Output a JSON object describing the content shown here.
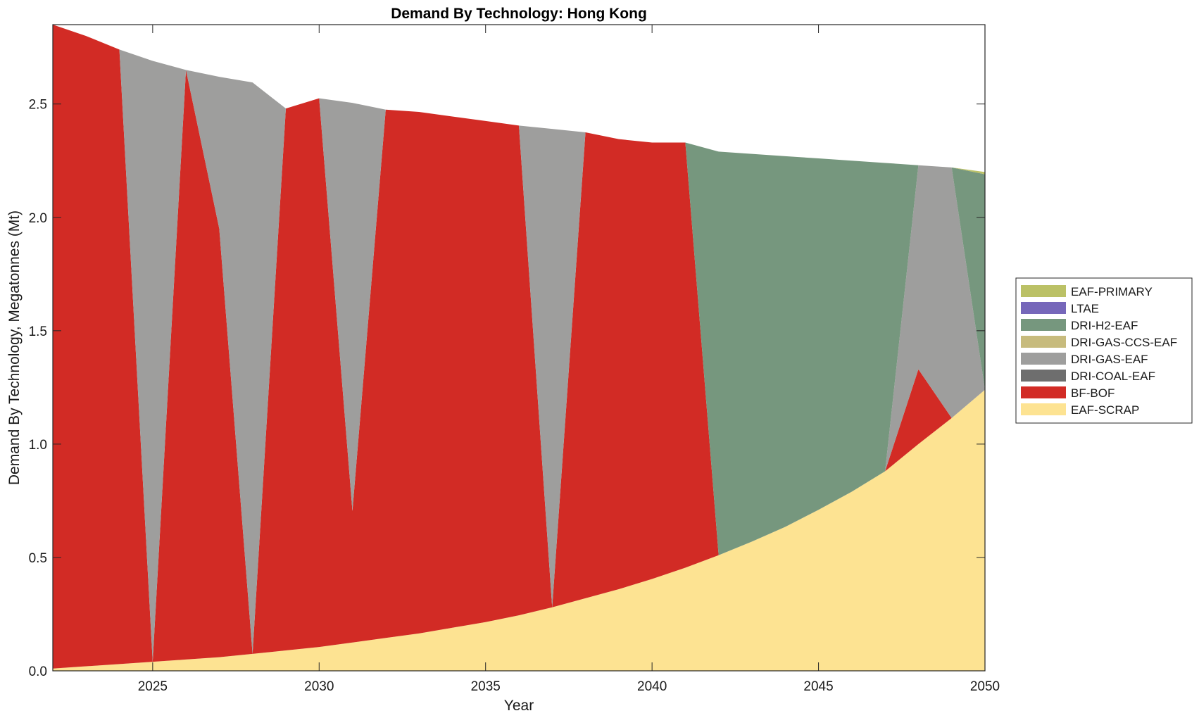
{
  "chart_data": {
    "type": "area",
    "stacked": true,
    "title": "Demand By Technology: Hong Kong",
    "xlabel": "Year",
    "ylabel": "Demand By Technology, Megatonnes (Mt)",
    "xlim": [
      2022,
      2050
    ],
    "ylim": [
      0,
      2.85
    ],
    "xticks": [
      "2025",
      "2030",
      "2035",
      "2040",
      "2045",
      "2050"
    ],
    "yticks": [
      "0.0",
      "0.5",
      "1.0",
      "1.5",
      "2.0",
      "2.5"
    ],
    "grid": false,
    "legend_position": "right",
    "x": [
      2022,
      2023,
      2024,
      2025,
      2026,
      2027,
      2028,
      2029,
      2030,
      2031,
      2032,
      2033,
      2034,
      2035,
      2036,
      2037,
      2038,
      2039,
      2040,
      2041,
      2042,
      2043,
      2044,
      2045,
      2046,
      2047,
      2048,
      2049,
      2050
    ],
    "series": [
      {
        "name": "EAF-SCRAP",
        "color": "#fde392",
        "values": [
          0.01,
          0.02,
          0.03,
          0.04,
          0.05,
          0.06,
          0.075,
          0.09,
          0.105,
          0.125,
          0.145,
          0.165,
          0.19,
          0.215,
          0.245,
          0.28,
          0.32,
          0.36,
          0.405,
          0.455,
          0.51,
          0.57,
          0.635,
          0.71,
          0.79,
          0.88,
          1.0,
          1.115,
          1.24
        ]
      },
      {
        "name": "BF-BOF",
        "color": "#d22b25",
        "values": [
          2.84,
          2.78,
          2.71,
          0.0,
          2.6,
          1.89,
          0.0,
          2.39,
          2.42,
          0.58,
          2.33,
          2.3,
          2.255,
          2.21,
          2.16,
          0.0,
          2.055,
          1.985,
          1.925,
          1.875,
          0.0,
          0.0,
          0.0,
          0.0,
          0.0,
          0.0,
          0.33,
          0.0,
          0.0
        ]
      },
      {
        "name": "DRI-COAL-EAF",
        "color": "#6e6e6e",
        "values": [
          0,
          0,
          0,
          0,
          0,
          0,
          0,
          0,
          0,
          0,
          0,
          0,
          0,
          0,
          0,
          0,
          0,
          0,
          0,
          0,
          0,
          0,
          0,
          0,
          0,
          0,
          0,
          0,
          0
        ]
      },
      {
        "name": "DRI-GAS-EAF",
        "color": "#9e9e9d",
        "values": [
          0.0,
          0.0,
          0.0,
          2.65,
          0.0,
          0.67,
          2.52,
          0.0,
          0.0,
          1.8,
          0.0,
          0.0,
          0.0,
          0.0,
          0.0,
          2.11,
          0.0,
          0.0,
          0.0,
          0.0,
          0.0,
          0.0,
          0.0,
          0.0,
          0.0,
          0.0,
          0.9,
          1.105,
          0.0
        ]
      },
      {
        "name": "DRI-GAS-CCS-EAF",
        "color": "#c7bb7d",
        "values": [
          0,
          0,
          0,
          0,
          0,
          0,
          0,
          0,
          0,
          0,
          0,
          0,
          0,
          0,
          0,
          0,
          0,
          0,
          0,
          0,
          0,
          0,
          0,
          0,
          0,
          0,
          0,
          0,
          0
        ]
      },
      {
        "name": "DRI-H2-EAF",
        "color": "#76977e",
        "values": [
          0.0,
          0.0,
          0.0,
          0.0,
          0.0,
          0.0,
          0.0,
          0.0,
          0.0,
          0.0,
          0.0,
          0.0,
          0.0,
          0.0,
          0.0,
          0.0,
          0.0,
          0.0,
          0.0,
          0.0,
          1.78,
          1.71,
          1.635,
          1.55,
          1.46,
          1.36,
          0.0,
          0.0,
          0.95
        ]
      },
      {
        "name": "LTAE",
        "color": "#7667ba",
        "values": [
          0,
          0,
          0,
          0,
          0,
          0,
          0,
          0,
          0,
          0,
          0,
          0,
          0,
          0,
          0,
          0,
          0,
          0,
          0,
          0,
          0,
          0,
          0,
          0,
          0,
          0,
          0,
          0,
          0
        ]
      },
      {
        "name": "EAF-PRIMARY",
        "color": "#bbc166",
        "values": [
          0,
          0,
          0,
          0,
          0,
          0,
          0,
          0,
          0,
          0,
          0,
          0,
          0,
          0,
          0,
          0,
          0,
          0,
          0,
          0,
          0,
          0,
          0,
          0,
          0,
          0,
          0,
          0.0,
          0.01
        ]
      }
    ],
    "legend_order": [
      "EAF-PRIMARY",
      "LTAE",
      "DRI-H2-EAF",
      "DRI-GAS-CCS-EAF",
      "DRI-GAS-EAF",
      "DRI-COAL-EAF",
      "BF-BOF",
      "EAF-SCRAP"
    ]
  }
}
